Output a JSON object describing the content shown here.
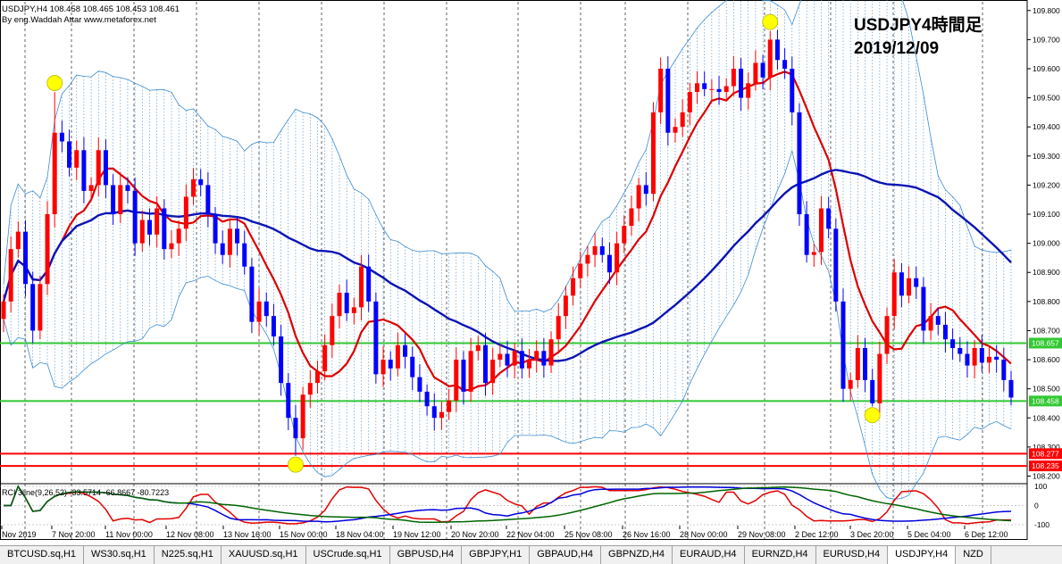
{
  "header": {
    "symbol_line": "USDJPY,H4  108.458 108.465 108.453 108.461",
    "author_line": "By eng.Waddah Attar  www.metaforex.net",
    "title_line1": "USDJPY4時間足",
    "title_line2": "2019/12/09"
  },
  "indicator": {
    "label": "RCI 3line(9,26,52) -33.5714 -66.8667 -80.7223",
    "levels": [
      "100",
      "0",
      "-100"
    ]
  },
  "price_labels": {
    "upper_green": "108.657",
    "lower_green": "108.458",
    "upper_red": "108.277",
    "lower_red": "108.235"
  },
  "tabs": [
    "BTCUSD.sq,H1",
    "WS30.sq,H1",
    "N225.sq,H1",
    "XAUUSD.sq,H1",
    "USCrude.sq,H1",
    "GBPUSD,H4",
    "GBPJPY,H1",
    "GBPAUD,H4",
    "GBPNZD,H4",
    "EURAUD,H4",
    "EURNZD,H4",
    "EURUSD,H4",
    "USDJPY,H4",
    "NZD"
  ],
  "active_tab": "USDJPY,H4",
  "colors": {
    "bull": "#ff0000",
    "bear": "#0000ff",
    "ma_fast": "#dc0000",
    "ma_slow": "#0a14b4",
    "band": "#3c8cd2",
    "level_green": "#32c832",
    "level_red": "#ff0000",
    "rci_short": "#e60000",
    "rci_mid": "#0000dc",
    "rci_long": "#006400",
    "marker": "#ffff00"
  },
  "chart_data": {
    "type": "candlestick",
    "symbol": "USDJPY",
    "timeframe": "H4",
    "ylim": [
      108.18,
      109.83
    ],
    "y_ticks": [
      "109.800",
      "109.700",
      "109.600",
      "109.500",
      "109.400",
      "109.300",
      "109.200",
      "109.100",
      "109.000",
      "108.900",
      "108.800",
      "108.700",
      "108.600",
      "108.500",
      "108.400",
      "108.300",
      "108.200"
    ],
    "x_tick_labels": [
      "Nov 2019",
      "7 Nov 20:00",
      "11 Nov 00:00",
      "12 Nov 08:00",
      "13 Nov 16:00",
      "15 Nov 00:00",
      "18 Nov 04:00",
      "19 Nov 12:00",
      "20 Nov 20:00",
      "22 Nov 04:00",
      "25 Nov 08:00",
      "26 Nov 16:00",
      "28 Nov 00:00",
      "29 Nov 08:00",
      "2 Dec 12:00",
      "3 Dec 20:00",
      "5 Dec 04:00",
      "6 Dec 12:00"
    ],
    "horizontal_levels": [
      {
        "value": 108.657,
        "color": "green"
      },
      {
        "value": 108.458,
        "color": "green"
      },
      {
        "value": 108.277,
        "color": "red"
      },
      {
        "value": 108.235,
        "color": "red"
      }
    ],
    "key_points": [
      {
        "kind": "high",
        "value": 109.52
      },
      {
        "kind": "low",
        "value": 108.27
      },
      {
        "kind": "high",
        "value": 109.73
      },
      {
        "kind": "low",
        "value": 108.44
      }
    ],
    "closes": [
      108.8,
      108.98,
      109.04,
      108.86,
      108.7,
      108.86,
      109.1,
      109.38,
      109.35,
      109.26,
      109.32,
      109.18,
      109.2,
      109.32,
      109.2,
      109.1,
      109.2,
      109.18,
      109.0,
      109.08,
      109.03,
      109.12,
      108.98,
      109.0,
      109.05,
      109.16,
      109.22,
      109.2,
      109.1,
      109.0,
      108.96,
      109.05,
      109.0,
      108.92,
      108.73,
      108.8,
      108.75,
      108.68,
      108.52,
      108.4,
      108.33,
      108.48,
      108.52,
      108.56,
      108.65,
      108.75,
      108.83,
      108.76,
      108.78,
      108.92,
      108.8,
      108.55,
      108.6,
      108.57,
      108.65,
      108.61,
      108.54,
      108.49,
      108.44,
      108.4,
      108.42,
      108.46,
      108.6,
      108.49,
      108.63,
      108.65,
      108.52,
      108.6,
      108.62,
      108.58,
      108.63,
      108.57,
      108.6,
      108.63,
      108.58,
      108.67,
      108.75,
      108.82,
      108.88,
      108.93,
      108.96,
      108.99,
      108.96,
      108.9,
      109.0,
      109.06,
      109.12,
      109.2,
      109.17,
      109.45,
      109.6,
      109.38,
      109.4,
      109.45,
      109.52,
      109.55,
      109.53,
      109.53,
      109.52,
      109.54,
      109.6,
      109.5,
      109.55,
      109.62,
      109.57,
      109.7,
      109.63,
      109.6,
      109.45,
      109.1,
      108.96,
      108.97,
      109.12,
      109.05,
      108.8,
      108.5,
      108.53,
      108.64,
      108.53,
      108.45,
      108.62,
      108.75,
      108.9,
      108.82,
      108.88,
      108.85,
      108.7,
      108.75,
      108.72,
      108.67,
      108.64,
      108.62,
      108.58,
      108.64,
      108.59,
      108.61,
      108.6,
      108.53,
      108.47
    ]
  }
}
